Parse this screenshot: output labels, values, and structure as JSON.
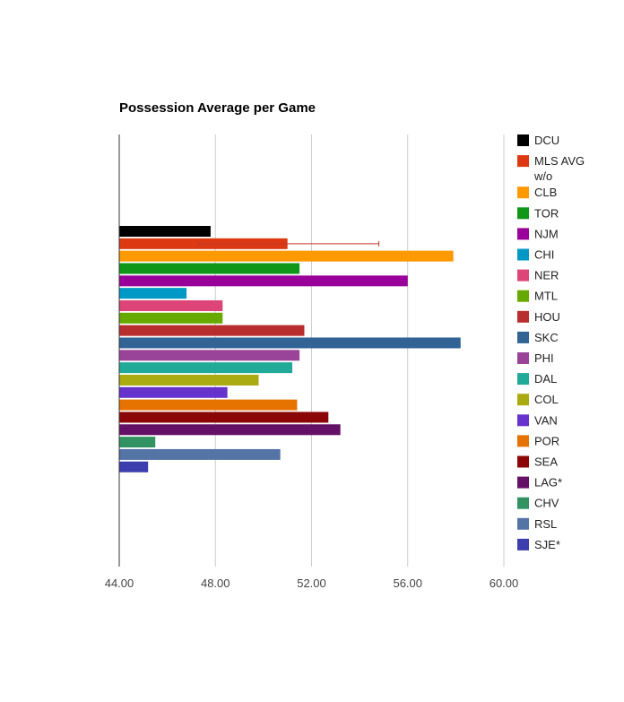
{
  "chart_data": {
    "type": "bar",
    "orientation": "horizontal",
    "title": "Possession Average per Game",
    "xlim": [
      44,
      60
    ],
    "xticks": [
      44,
      48,
      52,
      56,
      60
    ],
    "xtick_labels": [
      "44.00",
      "48.00",
      "52.00",
      "56.00",
      "60.00"
    ],
    "gridlines": true,
    "legend_position": "right",
    "series": [
      {
        "name": "DCU",
        "value": 47.8,
        "color": "#000000"
      },
      {
        "name": "MLS AVG w/o",
        "value": 51.0,
        "color": "#dc3912",
        "error_low": 47.3,
        "error_high": 54.8
      },
      {
        "name": "CLB",
        "value": 57.9,
        "color": "#ff9900"
      },
      {
        "name": "TOR",
        "value": 51.5,
        "color": "#109618"
      },
      {
        "name": "NJM",
        "value": 56.0,
        "color": "#990099"
      },
      {
        "name": "CHI",
        "value": 46.8,
        "color": "#0099c6"
      },
      {
        "name": "NER",
        "value": 48.3,
        "color": "#dd4477"
      },
      {
        "name": "MTL",
        "value": 48.3,
        "color": "#66aa00"
      },
      {
        "name": "HOU",
        "value": 51.7,
        "color": "#b82e2e"
      },
      {
        "name": "SKC",
        "value": 58.2,
        "color": "#316395"
      },
      {
        "name": "PHI",
        "value": 51.5,
        "color": "#994499"
      },
      {
        "name": "DAL",
        "value": 51.2,
        "color": "#22aa99"
      },
      {
        "name": "COL",
        "value": 49.8,
        "color": "#aaaa11"
      },
      {
        "name": "VAN",
        "value": 48.5,
        "color": "#6633cc"
      },
      {
        "name": "POR",
        "value": 51.4,
        "color": "#e67300"
      },
      {
        "name": "SEA",
        "value": 52.7,
        "color": "#8b0707"
      },
      {
        "name": "LAG*",
        "value": 53.2,
        "color": "#651067"
      },
      {
        "name": "CHV",
        "value": 45.5,
        "color": "#329262"
      },
      {
        "name": "RSL",
        "value": 50.7,
        "color": "#5574a6"
      },
      {
        "name": "SJE*",
        "value": 45.2,
        "color": "#3b3eac"
      }
    ]
  }
}
